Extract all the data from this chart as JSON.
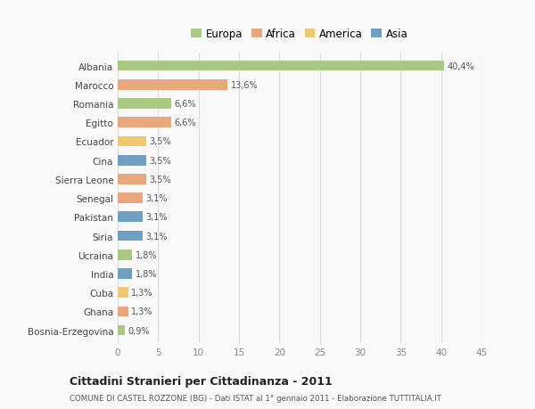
{
  "countries": [
    "Albania",
    "Marocco",
    "Romania",
    "Egitto",
    "Ecuador",
    "Cina",
    "Sierra Leone",
    "Senegal",
    "Pakistan",
    "Siria",
    "Ucraina",
    "India",
    "Cuba",
    "Ghana",
    "Bosnia-Erzegovina"
  ],
  "values": [
    40.4,
    13.6,
    6.6,
    6.6,
    3.5,
    3.5,
    3.5,
    3.1,
    3.1,
    3.1,
    1.8,
    1.8,
    1.3,
    1.3,
    0.9
  ],
  "labels": [
    "40,4%",
    "13,6%",
    "6,6%",
    "6,6%",
    "3,5%",
    "3,5%",
    "3,5%",
    "3,1%",
    "3,1%",
    "3,1%",
    "1,8%",
    "1,8%",
    "1,3%",
    "1,3%",
    "0,9%"
  ],
  "colors": [
    "#a8c97f",
    "#e8a87c",
    "#a8c97f",
    "#e8a87c",
    "#f0c96e",
    "#6e9fc5",
    "#e8a87c",
    "#e8a87c",
    "#6e9fc5",
    "#6e9fc5",
    "#a8c97f",
    "#6e9fc5",
    "#f0c96e",
    "#e8a87c",
    "#a8c97f"
  ],
  "continents": [
    "Europa",
    "Africa",
    "America",
    "Asia"
  ],
  "legend_colors": [
    "#a8c97f",
    "#e8a87c",
    "#f0c96e",
    "#6e9fc5"
  ],
  "title": "Cittadini Stranieri per Cittadinanza - 2011",
  "subtitle": "COMUNE DI CASTEL ROZZONE (BG) - Dati ISTAT al 1° gennaio 2011 - Elaborazione TUTTITALIA.IT",
  "xlim": [
    0,
    45
  ],
  "xticks": [
    0,
    5,
    10,
    15,
    20,
    25,
    30,
    35,
    40,
    45
  ],
  "background_color": "#f9f9f9",
  "grid_color": "#dddddd"
}
